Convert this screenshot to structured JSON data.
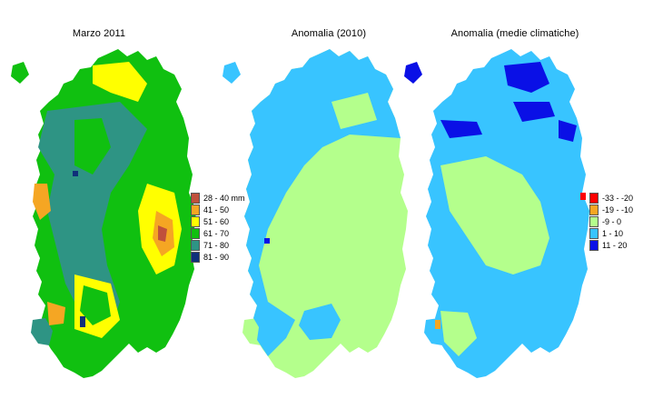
{
  "panels": [
    {
      "title": "Marzo 2011",
      "legend": [
        {
          "label": "28 - 40 mm",
          "color": "#c0503c"
        },
        {
          "label": "41 - 50",
          "color": "#f5a623"
        },
        {
          "label": "51 - 60",
          "color": "#ffff00"
        },
        {
          "label": "61 - 70",
          "color": "#10c010"
        },
        {
          "label": "71 - 80",
          "color": "#2e9484"
        },
        {
          "label": "81 - 90",
          "color": "#10307a"
        }
      ]
    },
    {
      "title": "Anomalia (2010)",
      "legend": []
    },
    {
      "title": "Anomalia (medie climatiche)",
      "legend": [
        {
          "label": "-33 - -20",
          "color": "#ff0000"
        },
        {
          "label": "-19 - -10",
          "color": "#f5a623"
        },
        {
          "label": "-9 - 0",
          "color": "#b4ff8c"
        },
        {
          "label": "1 - 10",
          "color": "#38c4ff"
        },
        {
          "label": "11 - 20",
          "color": "#0a10e6"
        }
      ]
    }
  ]
}
